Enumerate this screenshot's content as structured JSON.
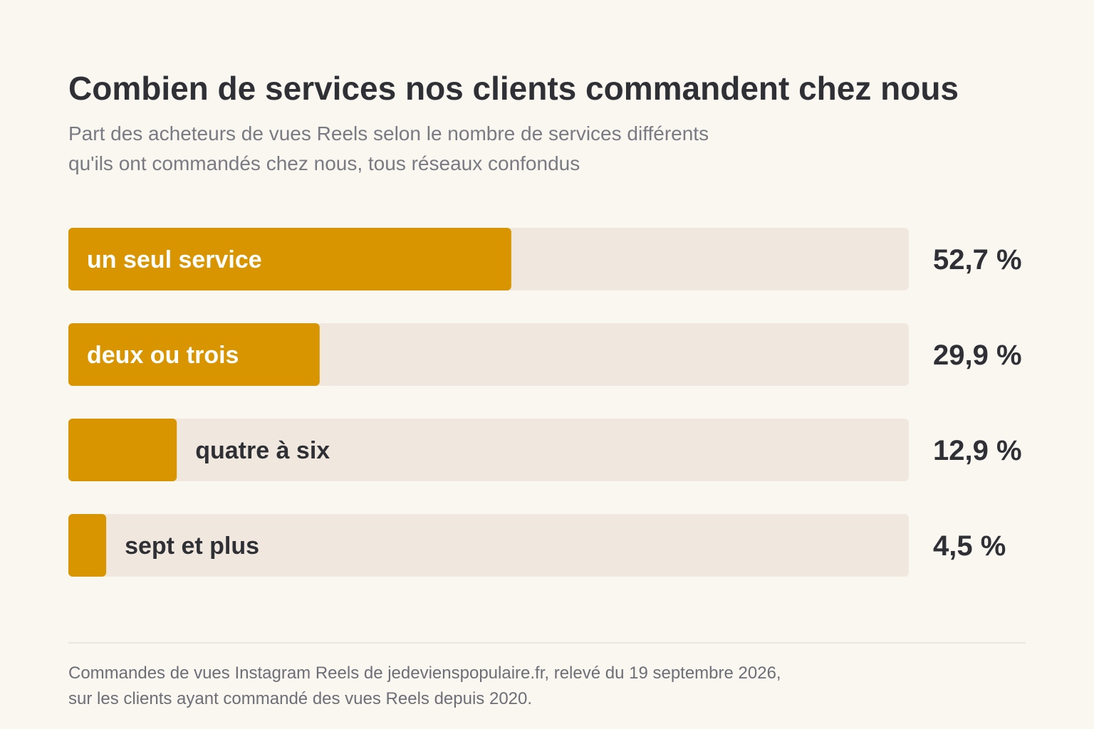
{
  "chart_data": {
    "type": "bar",
    "orientation": "horizontal",
    "title": "Combien de services nos clients commandent chez nous",
    "subtitle_lines": [
      "Part des acheteurs de vues Reels selon le nombre de services différents",
      "qu'ils ont commandés chez nous, tous réseaux confondus"
    ],
    "categories": [
      "un seul service",
      "deux ou trois",
      "quatre à six",
      "sept et plus"
    ],
    "values": [
      52.7,
      29.9,
      12.9,
      4.5
    ],
    "value_labels": [
      "52,7 %",
      "29,9 %",
      "12,9 %",
      "4,5 %"
    ],
    "xlim": [
      0,
      100
    ],
    "grid": false,
    "legend": "none",
    "colors": {
      "bar": "#d89500",
      "track": "#f0e8de",
      "label_on_bar": "#ffffff",
      "label_on_track": "#2f3036",
      "value": "#2f3036"
    }
  },
  "footer_lines": [
    "Commandes de vues Instagram Reels de jedeviens­populaire.fr, relevé du 19 septembre 2026,",
    "sur les clients ayant commandé des vues Reels depuis 2020."
  ]
}
